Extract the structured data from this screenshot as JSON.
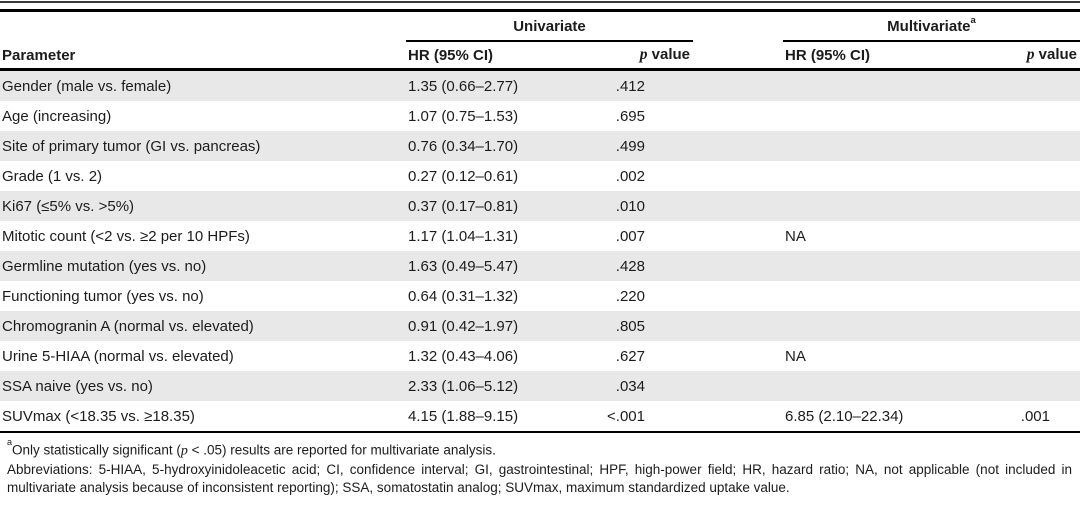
{
  "colors": {
    "stripe": "#e8e8e8",
    "rule": "#000000",
    "text": "#1c1c1c"
  },
  "table": {
    "col_groups": {
      "univariate": {
        "label": "Univariate",
        "sup": ""
      },
      "multivariate": {
        "label": "Multivariate",
        "sup": "a"
      }
    },
    "headers": {
      "parameter": "Parameter",
      "uni_hr": "HR (95% CI)",
      "multi_hr": "HR (95% CI)",
      "p_italic": "p",
      "p_rest": " value"
    },
    "rows": [
      {
        "parameter": "Gender (male vs. female)",
        "uni_hr": "1.35 (0.66–2.77)",
        "uni_p": ".412",
        "multi_hr": "",
        "multi_p": ""
      },
      {
        "parameter": "Age (increasing)",
        "uni_hr": "1.07 (0.75–1.53)",
        "uni_p": ".695",
        "multi_hr": "",
        "multi_p": ""
      },
      {
        "parameter": "Site of primary tumor (GI vs. pancreas)",
        "uni_hr": "0.76 (0.34–1.70)",
        "uni_p": ".499",
        "multi_hr": "",
        "multi_p": ""
      },
      {
        "parameter": "Grade (1 vs. 2)",
        "uni_hr": "0.27 (0.12–0.61)",
        "uni_p": ".002",
        "multi_hr": "",
        "multi_p": ""
      },
      {
        "parameter": "Ki67 (≤5% vs. >5%)",
        "uni_hr": "0.37 (0.17–0.81)",
        "uni_p": ".010",
        "multi_hr": "",
        "multi_p": ""
      },
      {
        "parameter": "Mitotic count (<2 vs. ≥2 per 10 HPFs)",
        "uni_hr": "1.17 (1.04–1.31)",
        "uni_p": ".007",
        "multi_hr": "NA",
        "multi_p": ""
      },
      {
        "parameter": "Germline mutation (yes vs. no)",
        "uni_hr": "1.63 (0.49–5.47)",
        "uni_p": ".428",
        "multi_hr": "",
        "multi_p": ""
      },
      {
        "parameter": "Functioning tumor (yes vs. no)",
        "uni_hr": "0.64 (0.31–1.32)",
        "uni_p": ".220",
        "multi_hr": "",
        "multi_p": ""
      },
      {
        "parameter": "Chromogranin A (normal vs. elevated)",
        "uni_hr": "0.91 (0.42–1.97)",
        "uni_p": ".805",
        "multi_hr": "",
        "multi_p": ""
      },
      {
        "parameter": "Urine 5-HIAA (normal vs. elevated)",
        "uni_hr": "1.32 (0.43–4.06)",
        "uni_p": ".627",
        "multi_hr": "NA",
        "multi_p": ""
      },
      {
        "parameter": "SSA naive (yes vs. no)",
        "uni_hr": "2.33 (1.06–5.12)",
        "uni_p": ".034",
        "multi_hr": "",
        "multi_p": ""
      },
      {
        "parameter": "SUVmax (<18.35 vs. ≥18.35)",
        "uni_hr": "4.15 (1.88–9.15)",
        "uni_p": "<.001",
        "multi_hr": "6.85 (2.10–22.34)",
        "multi_p": ".001"
      }
    ]
  },
  "footnotes": {
    "note_a": {
      "sup": "a",
      "before": "Only statistically significant (",
      "italic_p": "p",
      "after": " < .05) results are reported for multivariate analysis."
    },
    "abbreviations": "Abbreviations: 5-HIAA, 5-hydroxyinidoleacetic acid; CI, confidence interval; GI, gastrointestinal; HPF, high-power field; HR, hazard ratio; NA, not applicable (not included in multivariate analysis because of inconsistent reporting); SSA, somatostatin analog; SUVmax, maximum standardized uptake value."
  }
}
